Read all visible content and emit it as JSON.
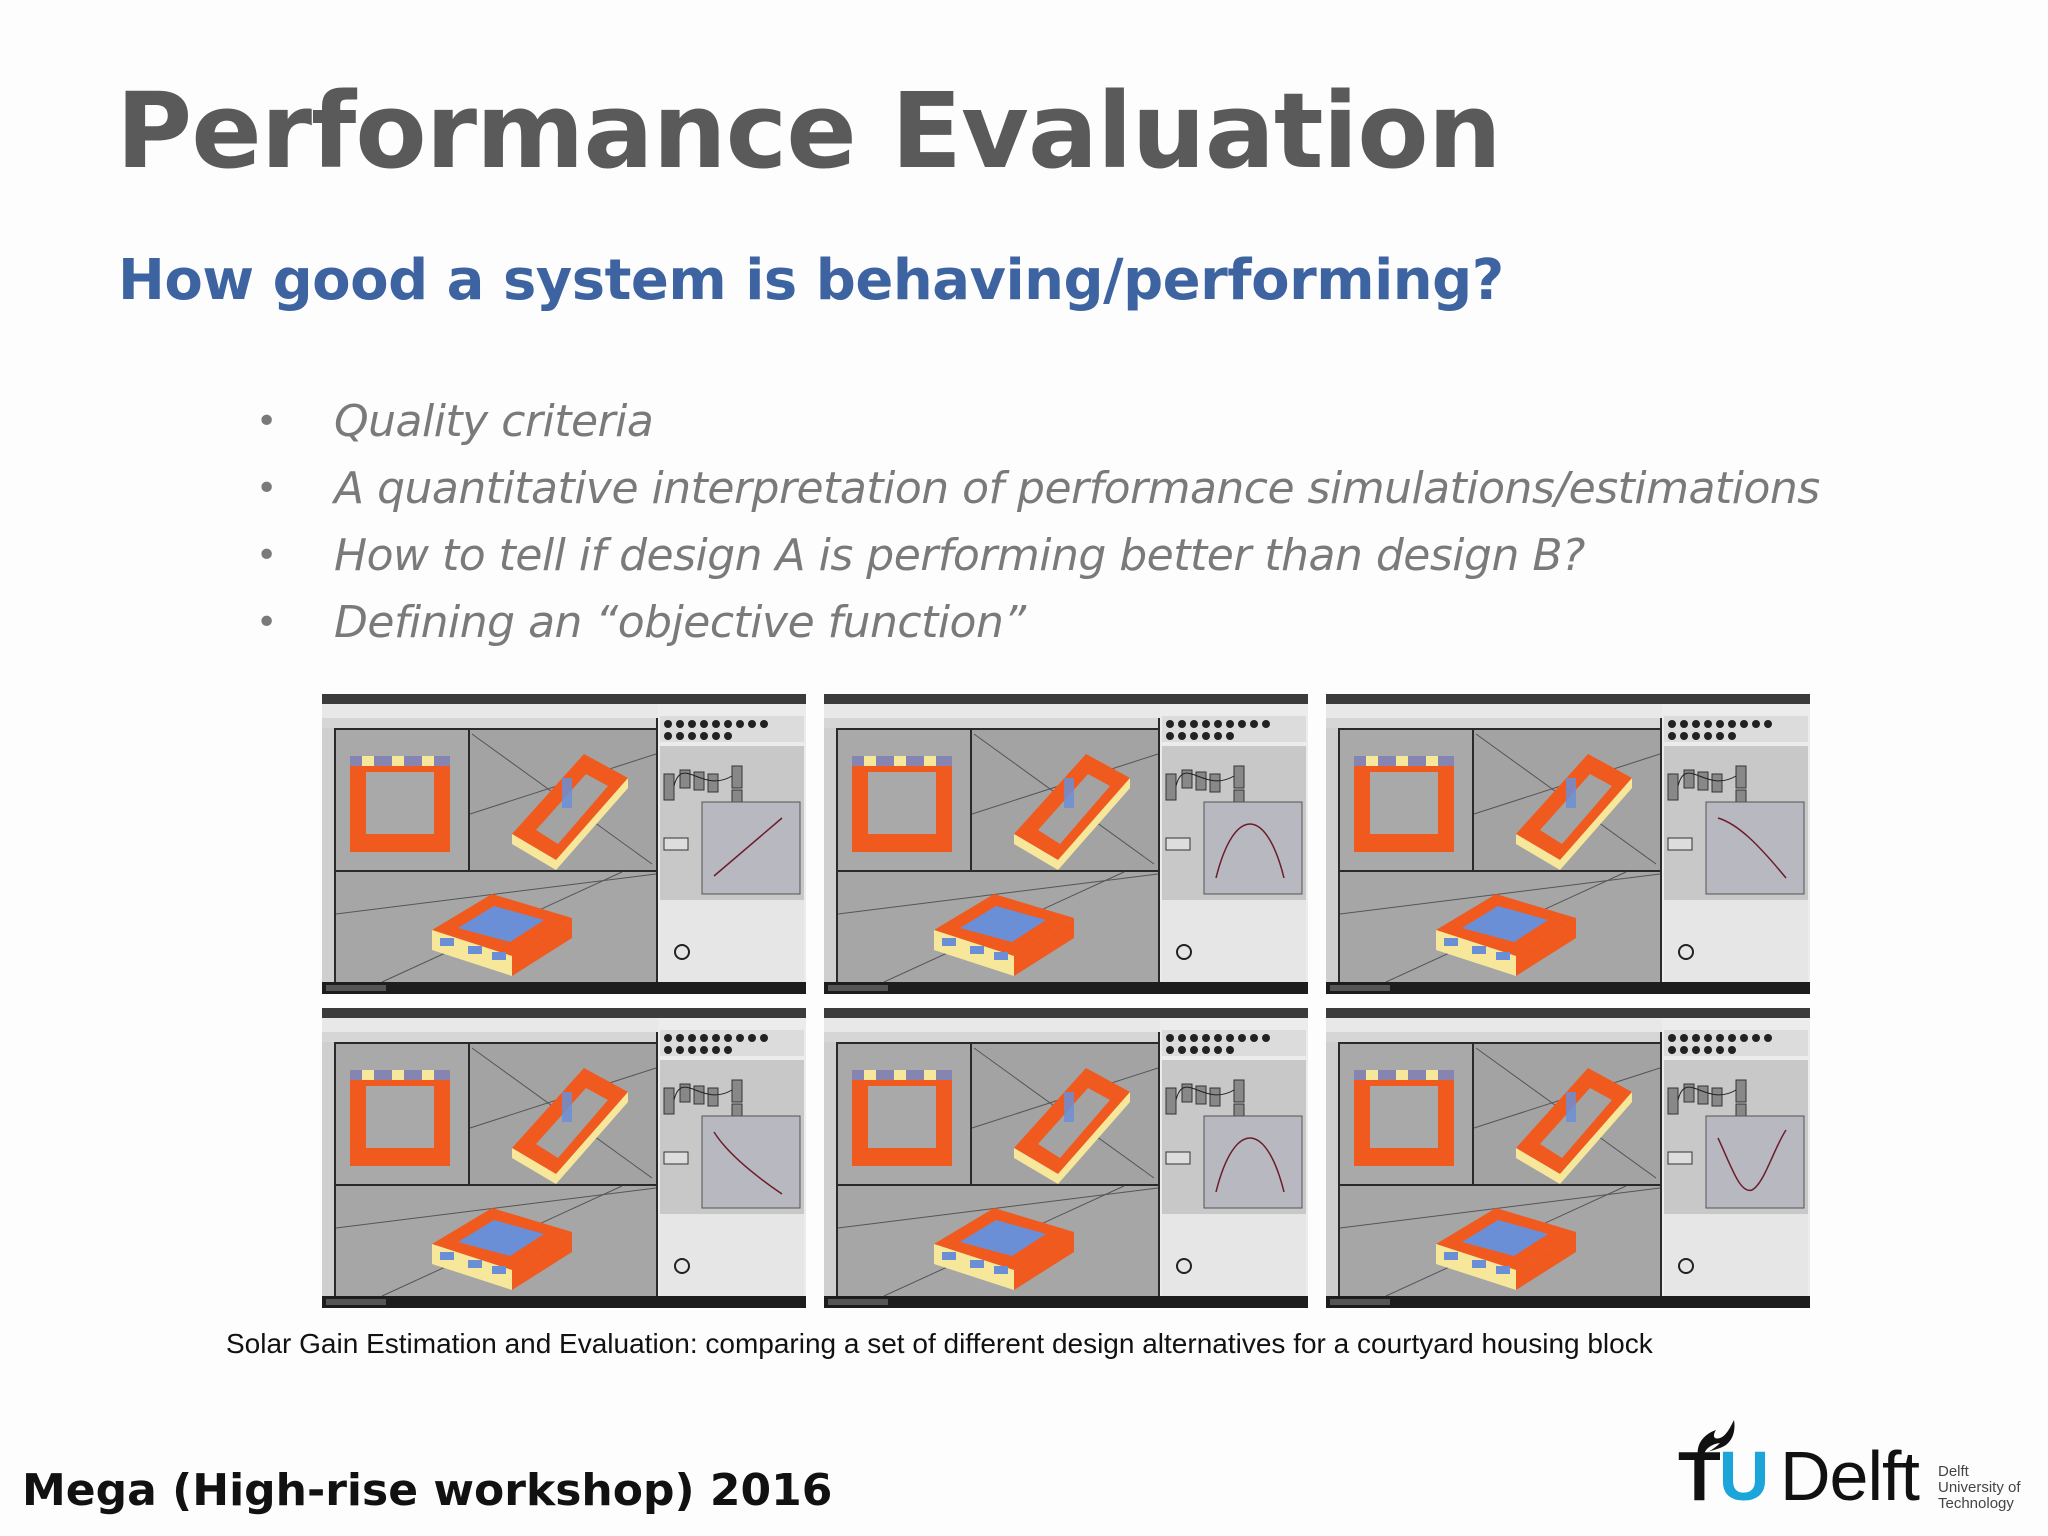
{
  "slide": {
    "title": "Performance Evaluation",
    "subtitle": "How good a system is behaving/performing?",
    "bullets": [
      "Quality criteria",
      "A quantitative interpretation of performance simulations/estimations",
      "How to tell if design A is performing better than design B?",
      "Defining an “objective function”"
    ],
    "bullet_glyph": "•",
    "caption": "Solar Gain Estimation and Evaluation: comparing a set of different design alternatives for a courtyard housing block",
    "footer": "Mega (High-rise workshop) 2016"
  },
  "logo": {
    "tu": "TU",
    "u_letter": "U",
    "t_letter": "T",
    "delft": "Delft",
    "small_lines": [
      "Delft",
      "University of",
      "Technology"
    ],
    "accent_color": "#1ba5d8"
  },
  "screenshots": [
    {
      "curve": "rising"
    },
    {
      "curve": "arch"
    },
    {
      "curve": "falling"
    },
    {
      "curve": "falling-steep"
    },
    {
      "curve": "arch"
    },
    {
      "curve": "valley"
    }
  ],
  "colors": {
    "title": "#5a5a5a",
    "subtitle": "#3d64a1",
    "bullets": "#7a7a7a",
    "orange": "#f05a1e",
    "yellow": "#f7e79b",
    "blue": "#6b8fd6"
  }
}
